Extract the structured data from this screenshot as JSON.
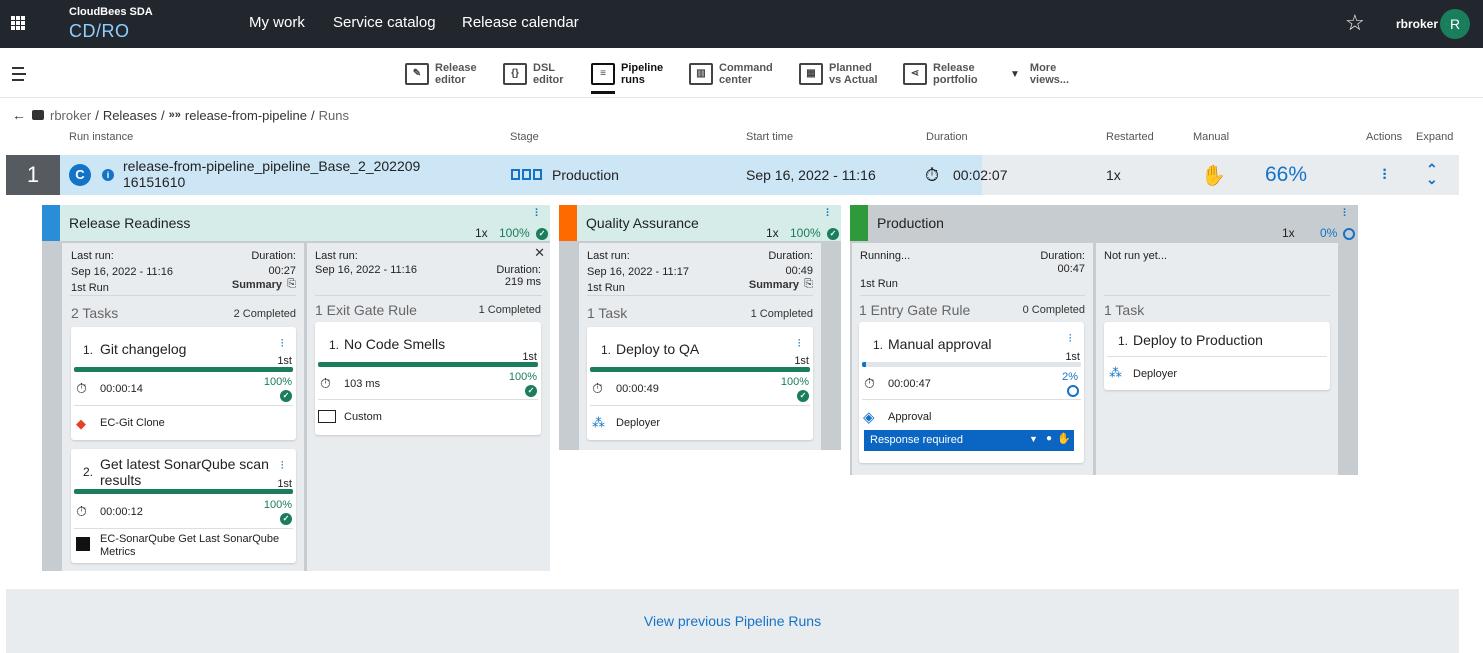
{
  "header": {
    "brand_small": "CloudBees SDA",
    "brand_big": "CD/RO",
    "nav": [
      "My work",
      "Service catalog",
      "Release calendar"
    ],
    "user": "rbroker",
    "avatar_initial": "R"
  },
  "views": [
    {
      "label": "Release\neditor",
      "icon": "pencil-icon"
    },
    {
      "label": "DSL\neditor",
      "icon": "braces-icon"
    },
    {
      "label": "Pipeline\nruns",
      "icon": "pipeline-runs-icon",
      "active": true
    },
    {
      "label": "Command\ncenter",
      "icon": "command-center-icon"
    },
    {
      "label": "Planned\nvs Actual",
      "icon": "planned-actual-icon"
    },
    {
      "label": "Release\nportfolio",
      "icon": "portfolio-icon"
    },
    {
      "label": "More\nviews...",
      "icon": "caret-down-icon"
    }
  ],
  "breadcrumb": {
    "project": "rbroker",
    "releases": "Releases",
    "release": "release-from-pipeline",
    "current": "Runs"
  },
  "columns": {
    "run_instance": "Run instance",
    "stage": "Stage",
    "start_time": "Start time",
    "duration": "Duration",
    "restarted": "Restarted",
    "manual": "Manual",
    "actions": "Actions",
    "expand": "Expand"
  },
  "run": {
    "number": "1",
    "name": "release-from-pipeline_pipeline_Base_2_202209 16151610",
    "stage": "Production",
    "start_time": "Sep 16, 2022 - 11:16",
    "duration": "00:02:07",
    "restarted": "1x",
    "progress": "66%",
    "progress_value": 66
  },
  "stages": {
    "readiness": {
      "title": "Release Readiness",
      "restarts": "1x",
      "percent": "100%",
      "color": "#2a8dd8",
      "tasks_col": {
        "last_run_label": "Last run:",
        "last_run": "Sep 16, 2022 - 11:16",
        "run_label": "1st Run",
        "duration_label": "Duration:",
        "duration": "00:27",
        "summary": "Summary",
        "section": "2 Tasks",
        "count": "2 Completed",
        "tasks": [
          {
            "num": "1.",
            "title": "Git changelog",
            "attempt": "1st",
            "time": "00:00:14",
            "percent": "100%",
            "progress": 100,
            "plugin": "EC-Git Clone"
          },
          {
            "num": "2.",
            "title": "Get latest SonarQube scan results",
            "attempt": "1st",
            "time": "00:00:12",
            "percent": "100%",
            "progress": 100,
            "plugin": "EC-SonarQube Get Last SonarQube Metrics"
          }
        ]
      },
      "gate_col": {
        "last_run_label": "Last run:",
        "last_run": "Sep 16, 2022 - 11:16",
        "duration_label": "Duration:",
        "duration": "219 ms",
        "section": "1 Exit Gate Rule",
        "count": "1 Completed",
        "rule": {
          "num": "1.",
          "title": "No Code Smells",
          "attempt": "1st",
          "time": "103 ms",
          "percent": "100%",
          "progress": 100,
          "plugin": "Custom"
        }
      }
    },
    "qa": {
      "title": "Quality Assurance",
      "restarts": "1x",
      "percent": "100%",
      "color": "#ff6a00",
      "tasks_col": {
        "last_run_label": "Last run:",
        "last_run": "Sep 16, 2022 - 11:17",
        "run_label": "1st Run",
        "duration_label": "Duration:",
        "duration": "00:49",
        "summary": "Summary",
        "section": "1 Task",
        "count": "1 Completed",
        "tasks": [
          {
            "num": "1.",
            "title": "Deploy to QA",
            "attempt": "1st",
            "time": "00:00:49",
            "percent": "100%",
            "progress": 100,
            "plugin": "Deployer"
          }
        ]
      }
    },
    "production": {
      "title": "Production",
      "restarts": "1x",
      "percent": "0%",
      "color": "#2e9a3c",
      "gate_col": {
        "status": "Running...",
        "run_label": "1st Run",
        "duration_label": "Duration:",
        "duration": "00:47",
        "section": "1 Entry Gate Rule",
        "count": "0 Completed",
        "rule": {
          "num": "1.",
          "title": "Manual approval",
          "attempt": "1st",
          "time": "00:00:47",
          "percent": "2%",
          "progress": 2,
          "plugin": "Approval",
          "response": "Response required"
        }
      },
      "tasks_col": {
        "status": "Not run yet...",
        "section": "1 Task",
        "tasks": [
          {
            "num": "1.",
            "title": "Deploy to Production",
            "plugin": "Deployer"
          }
        ]
      }
    }
  },
  "footer": {
    "view_previous": "View previous Pipeline Runs"
  },
  "colors": {
    "accent": "#1473c7",
    "success": "#1a7d5b",
    "topbar": "#22272e"
  }
}
